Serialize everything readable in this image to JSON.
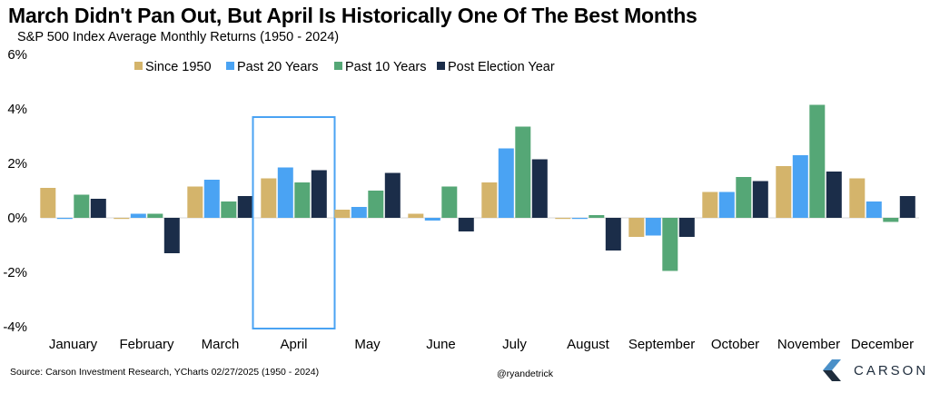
{
  "header": {
    "title": "March Didn't Pan Out, But April Is Historically One Of The Best Months",
    "subtitle": "S&P 500 Index Average Monthly Returns (1950 - 2024)"
  },
  "footer": {
    "source": "Source: Carson Investment Research, YCharts 02/27/2025 (1950 - 2024)",
    "handle": "@ryandetrick",
    "logo_text": "CARSON",
    "logo_icon": "carson-chevron-logo",
    "logo_colors": [
      "#4a90c8",
      "#1f2d3d"
    ]
  },
  "chart_data": {
    "type": "bar",
    "categories": [
      "January",
      "February",
      "March",
      "April",
      "May",
      "June",
      "July",
      "August",
      "September",
      "October",
      "November",
      "December"
    ],
    "series": [
      {
        "name": "Since 1950",
        "color": "#d4b46b",
        "values": [
          1.1,
          0.0,
          1.15,
          1.45,
          0.3,
          0.15,
          1.3,
          0.0,
          -0.7,
          0.95,
          1.9,
          1.45
        ]
      },
      {
        "name": "Past 20 Years",
        "color": "#4aa3f3",
        "values": [
          0.0,
          0.15,
          1.4,
          1.85,
          0.4,
          -0.1,
          2.55,
          0.0,
          -0.65,
          0.95,
          2.3,
          0.6
        ]
      },
      {
        "name": "Past 10 Years",
        "color": "#55a776",
        "values": [
          0.85,
          0.15,
          0.6,
          1.3,
          1.0,
          1.15,
          3.35,
          0.1,
          -1.95,
          1.5,
          4.15,
          -0.15
        ]
      },
      {
        "name": "Post Election Year",
        "color": "#1b2d49",
        "values": [
          0.7,
          -1.3,
          0.8,
          1.75,
          1.65,
          -0.5,
          2.15,
          -1.2,
          -0.7,
          1.35,
          1.7,
          0.8
        ]
      }
    ],
    "y_ticks": [
      "-4%",
      "-2%",
      "0%",
      "2%",
      "4%",
      "6%"
    ],
    "ylim": [
      -4,
      6
    ],
    "grid": false,
    "legend": "top",
    "highlight_category": "April",
    "highlight_color": "#4aa3f3"
  }
}
